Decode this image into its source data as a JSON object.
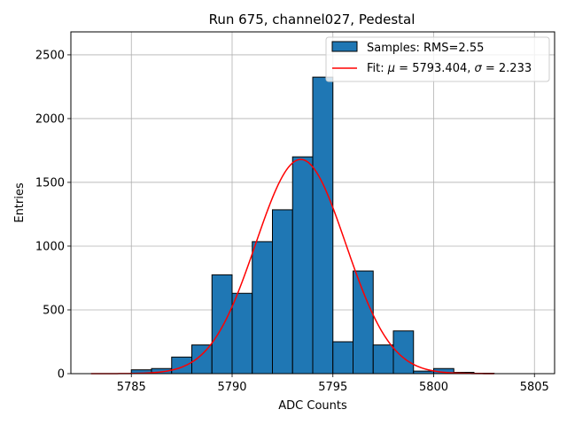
{
  "chart_data": {
    "type": "bar",
    "title": "Run 675, channel027, Pedestal",
    "xlabel": "ADC Counts",
    "ylabel": "Entries",
    "xlim": [
      5782,
      5806
    ],
    "ylim": [
      0,
      2680
    ],
    "x_ticks": [
      5785,
      5790,
      5795,
      5800,
      5805
    ],
    "x_tick_labels": [
      "5785",
      "5790",
      "5795",
      "5800",
      "5805"
    ],
    "y_ticks": [
      0,
      500,
      1000,
      1500,
      2000,
      2500
    ],
    "y_tick_labels": [
      "0",
      "500",
      "1000",
      "1500",
      "2000",
      "2500"
    ],
    "grid": true,
    "legend_position": "top-right",
    "histogram": {
      "name": "Samples: RMS=2.55",
      "color": "#1f77b4",
      "edge_color": "#000000",
      "bins": [
        {
          "x0": 5785,
          "x1": 5786,
          "value": 30
        },
        {
          "x0": 5786,
          "x1": 5787,
          "value": 40
        },
        {
          "x0": 5787,
          "x1": 5788,
          "value": 130
        },
        {
          "x0": 5788,
          "x1": 5789,
          "value": 225
        },
        {
          "x0": 5789,
          "x1": 5790,
          "value": 775
        },
        {
          "x0": 5790,
          "x1": 5791,
          "value": 630
        },
        {
          "x0": 5791,
          "x1": 5792,
          "value": 1035
        },
        {
          "x0": 5792,
          "x1": 5793,
          "value": 1285
        },
        {
          "x0": 5793,
          "x1": 5794,
          "value": 1700
        },
        {
          "x0": 5794,
          "x1": 5795,
          "value": 2325
        },
        {
          "x0": 5795,
          "x1": 5796,
          "value": 250
        },
        {
          "x0": 5796,
          "x1": 5797,
          "value": 805
        },
        {
          "x0": 5797,
          "x1": 5798,
          "value": 225
        },
        {
          "x0": 5798,
          "x1": 5799,
          "value": 335
        },
        {
          "x0": 5799,
          "x1": 5800,
          "value": 20
        },
        {
          "x0": 5800,
          "x1": 5801,
          "value": 40
        },
        {
          "x0": 5801,
          "x1": 5802,
          "value": 10
        },
        {
          "x0": 5802,
          "x1": 5803,
          "value": 3
        }
      ]
    },
    "fit": {
      "name_prefix": "Fit: ",
      "mu_symbol": "μ",
      "mu_text": " = 5793.404, ",
      "sigma_symbol": "σ",
      "sigma_text": " = 2.233",
      "color": "#ff0000",
      "mu": 5793.404,
      "sigma": 2.233,
      "amplitude": 1680,
      "x_range": [
        5783,
        5803
      ]
    }
  }
}
